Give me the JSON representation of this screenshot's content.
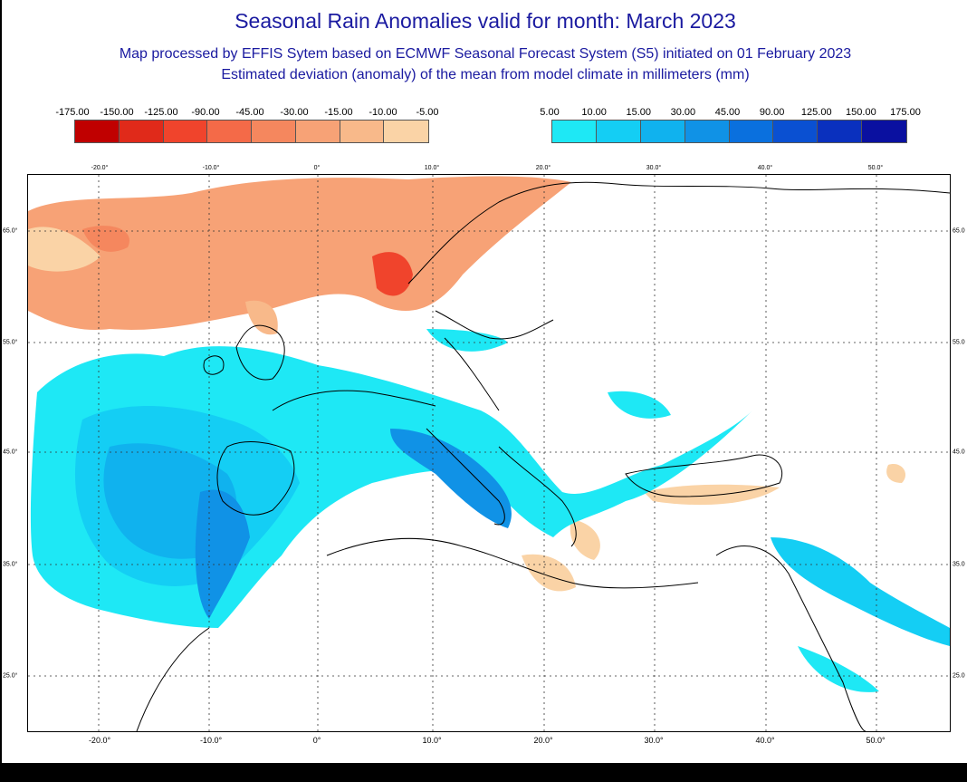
{
  "header": {
    "title": "Seasonal Rain Anomalies valid for month: March 2023",
    "subtitle": "Map processed by EFFIS Sytem based on ECMWF Seasonal Forecast System (S5) initiated on 01 February 2023",
    "subtitle2": "Estimated deviation (anomaly) of the mean from model climate in millimeters (mm)"
  },
  "legend_negative": {
    "ticks": [
      "-175.00",
      "-150.00",
      "-125.00",
      "-90.00",
      "-45.00",
      "-30.00",
      "-15.00",
      "-10.00",
      "-5.00"
    ],
    "colors": [
      "#c00000",
      "#e02a1a",
      "#f0442c",
      "#f46a48",
      "#f5875e",
      "#f7a276",
      "#f8b98a",
      "#fad3a6"
    ]
  },
  "legend_positive": {
    "ticks": [
      "5.00",
      "10.00",
      "15.00",
      "30.00",
      "45.00",
      "90.00",
      "125.00",
      "150.00",
      "175.00"
    ],
    "colors": [
      "#1ee8f5",
      "#14cef4",
      "#10b2ee",
      "#1092e6",
      "#0a70de",
      "#0a50d2",
      "#0a30be",
      "#0a10a0"
    ]
  },
  "map": {
    "lon_labels_top": [
      "-20.0°",
      "-10.0°",
      "0°",
      "10.0°",
      "20.0°",
      "30.0°",
      "40.0°",
      "50.0°"
    ],
    "lon_labels_bottom": [
      "-20.0°",
      "-10.0°",
      "0°",
      "10.0°",
      "20.0°",
      "30.0°",
      "40.0°",
      "50.0°"
    ],
    "lat_labels_left": [
      "65.0°",
      "55.0°",
      "45.0°",
      "35.0°",
      "25.0°"
    ],
    "lat_labels_right": [
      "65.0",
      "55.0",
      "45.0",
      "35.0",
      "25.0"
    ]
  }
}
